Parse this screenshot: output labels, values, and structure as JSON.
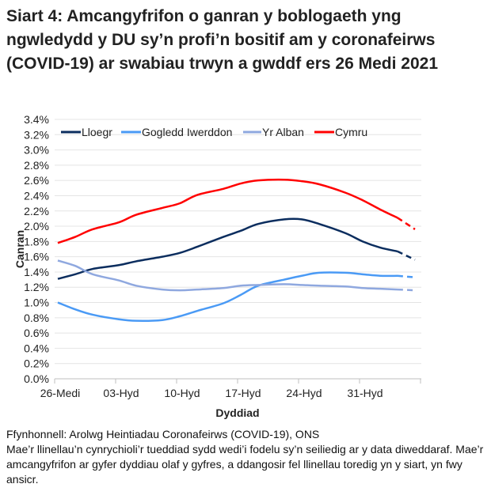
{
  "title": "Siart 4: Amcangyfrifon o ganran y boblogaeth yng ngwledydd y DU sy’n profi’n bositif am y coronafeirws (COVID-19) ar swabiau trwyn a gwddf ers 26 Medi 2021",
  "footer": {
    "source": "Ffynhonnell: Arolwg Heintiadau Coronafeirws (COVID-19), ONS",
    "note": "Mae’r llinellau’n cynrychioli’r tueddiad sydd wedi’i fodelu sy’n seiliedig ar y data diweddaraf. Mae’r amcangyfrifon ar gyfer dyddiau olaf y gyfres, a ddangosir fel llinellau toredig yn y siart, yn fwy ansicr."
  },
  "chart_data": {
    "type": "line",
    "title": "Siart 4: Amcangyfrifon o ganran y boblogaeth yng ngwledydd y DU sy’n profi’n bositif am y coronafeirws (COVID-19) ar swabiau trwyn a gwddf ers 26 Medi 2021",
    "xlabel": "Dyddiad",
    "ylabel": "Canran",
    "ylim": [
      0,
      3.4
    ],
    "y_ticks": [
      "0.0%",
      "0.2%",
      "0.4%",
      "0.6%",
      "0.8%",
      "1.0%",
      "1.2%",
      "1.4%",
      "1.6%",
      "1.8%",
      "2.0%",
      "2.2%",
      "2.4%",
      "2.6%",
      "2.8%",
      "3.0%",
      "3.2%",
      "3.4%"
    ],
    "x_ticks": [
      "26-Medi",
      "03-Hyd",
      "10-Hyd",
      "17-Hyd",
      "24-Hyd",
      "31-Hyd"
    ],
    "grid": true,
    "legend": "top",
    "dashed_from": "2021-11-04",
    "x": [
      "2021-09-26",
      "2021-09-28",
      "2021-09-30",
      "2021-10-03",
      "2021-10-05",
      "2021-10-08",
      "2021-10-10",
      "2021-10-12",
      "2021-10-15",
      "2021-10-17",
      "2021-10-19",
      "2021-10-22",
      "2021-10-24",
      "2021-10-26",
      "2021-10-29",
      "2021-10-31",
      "2021-11-02",
      "2021-11-04",
      "2021-11-06"
    ],
    "series": [
      {
        "name": "Lloegr",
        "color": "#0b2d5e",
        "values": [
          1.31,
          1.37,
          1.44,
          1.49,
          1.54,
          1.6,
          1.65,
          1.73,
          1.86,
          1.94,
          2.03,
          2.09,
          2.09,
          2.03,
          1.91,
          1.8,
          1.72,
          1.67,
          1.56
        ]
      },
      {
        "name": "Gogledd Iwerddon",
        "color": "#4a9af5",
        "values": [
          1.0,
          0.91,
          0.84,
          0.78,
          0.76,
          0.77,
          0.82,
          0.89,
          0.99,
          1.1,
          1.22,
          1.3,
          1.35,
          1.39,
          1.39,
          1.37,
          1.35,
          1.35,
          1.33
        ]
      },
      {
        "name": "Yr Alban",
        "color": "#8fa8df",
        "values": [
          1.55,
          1.48,
          1.37,
          1.29,
          1.22,
          1.17,
          1.16,
          1.17,
          1.19,
          1.22,
          1.23,
          1.24,
          1.23,
          1.22,
          1.21,
          1.19,
          1.18,
          1.17,
          1.16
        ]
      },
      {
        "name": "Cymru",
        "color": "#ff0000",
        "values": [
          1.78,
          1.86,
          1.96,
          2.05,
          2.15,
          2.24,
          2.3,
          2.41,
          2.49,
          2.56,
          2.6,
          2.61,
          2.59,
          2.55,
          2.44,
          2.34,
          2.22,
          2.11,
          1.96
        ]
      }
    ]
  }
}
